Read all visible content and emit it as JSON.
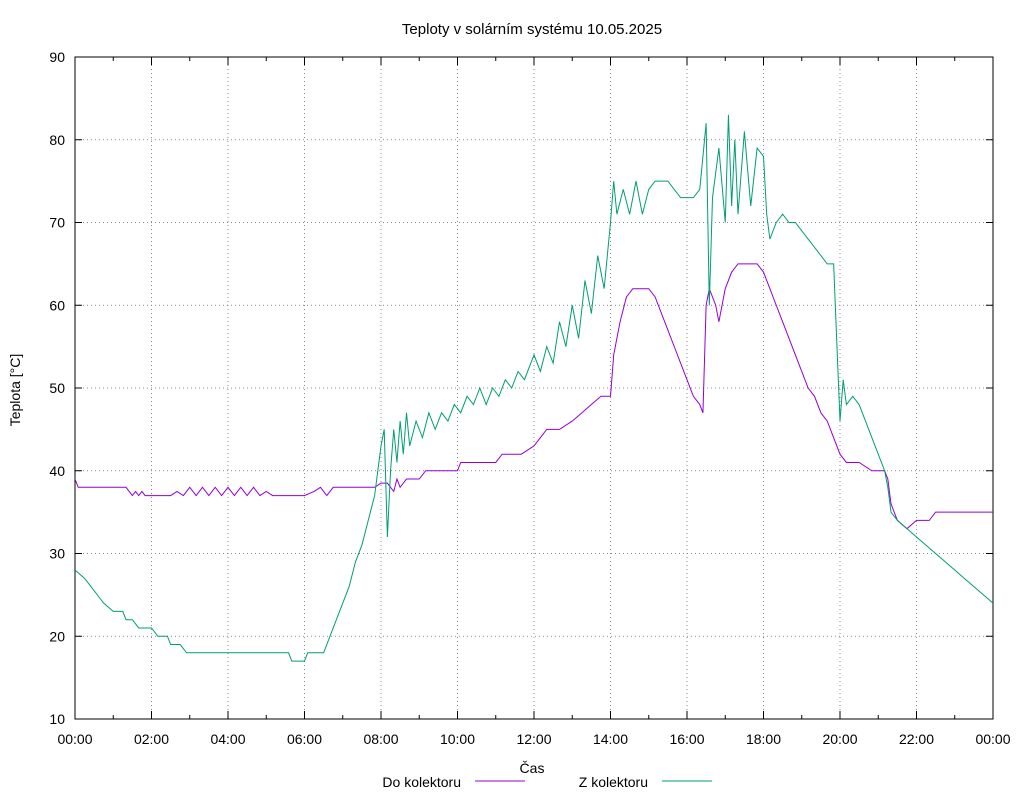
{
  "chart_data": {
    "type": "line",
    "title": "Teploty v solárním systému 10.05.2025",
    "xlabel": "Čas",
    "ylabel": "Teplota [°C]",
    "xlim": [
      "00:00",
      "24:00"
    ],
    "ylim": [
      10,
      90
    ],
    "grid": true,
    "legend_position": "bottom",
    "x_ticks": [
      "00:00",
      "02:00",
      "04:00",
      "06:00",
      "08:00",
      "10:00",
      "12:00",
      "14:00",
      "16:00",
      "18:00",
      "20:00",
      "22:00",
      "00:00"
    ],
    "y_ticks": [
      "10",
      "20",
      "30",
      "40",
      "50",
      "60",
      "70",
      "80",
      "90"
    ],
    "series": [
      {
        "name": "Do kolektoru",
        "color": "#9400d3",
        "points": [
          [
            "00:00",
            39
          ],
          [
            "00:05",
            38
          ],
          [
            "01:20",
            38
          ],
          [
            "01:25",
            37.5
          ],
          [
            "01:30",
            37
          ],
          [
            "01:35",
            37.5
          ],
          [
            "01:40",
            37
          ],
          [
            "01:45",
            37.5
          ],
          [
            "01:50",
            37
          ],
          [
            "02:00",
            37
          ],
          [
            "02:10",
            37
          ],
          [
            "02:30",
            37
          ],
          [
            "02:40",
            37.5
          ],
          [
            "02:50",
            37
          ],
          [
            "03:00",
            38
          ],
          [
            "03:10",
            37
          ],
          [
            "03:20",
            38
          ],
          [
            "03:30",
            37
          ],
          [
            "03:40",
            38
          ],
          [
            "03:50",
            37
          ],
          [
            "04:00",
            38
          ],
          [
            "04:10",
            37
          ],
          [
            "04:20",
            38
          ],
          [
            "04:30",
            37
          ],
          [
            "04:40",
            38
          ],
          [
            "04:50",
            37
          ],
          [
            "05:00",
            37.5
          ],
          [
            "05:10",
            37
          ],
          [
            "06:00",
            37
          ],
          [
            "06:15",
            37.5
          ],
          [
            "06:25",
            38
          ],
          [
            "06:35",
            37
          ],
          [
            "06:45",
            38
          ],
          [
            "07:00",
            38
          ],
          [
            "07:50",
            38
          ],
          [
            "08:00",
            38.5
          ],
          [
            "08:10",
            38.5
          ],
          [
            "08:15",
            38
          ],
          [
            "08:20",
            37.5
          ],
          [
            "08:25",
            39
          ],
          [
            "08:30",
            38
          ],
          [
            "08:40",
            39
          ],
          [
            "09:00",
            39
          ],
          [
            "09:10",
            40
          ],
          [
            "09:30",
            40
          ],
          [
            "10:00",
            40
          ],
          [
            "10:05",
            41
          ],
          [
            "10:30",
            41
          ],
          [
            "11:00",
            41
          ],
          [
            "11:10",
            42
          ],
          [
            "11:40",
            42
          ],
          [
            "12:00",
            43
          ],
          [
            "12:10",
            44
          ],
          [
            "12:20",
            45
          ],
          [
            "12:40",
            45
          ],
          [
            "13:00",
            46
          ],
          [
            "13:15",
            47
          ],
          [
            "13:30",
            48
          ],
          [
            "13:45",
            49
          ],
          [
            "14:00",
            49
          ],
          [
            "14:05",
            54
          ],
          [
            "14:15",
            58
          ],
          [
            "14:25",
            61
          ],
          [
            "14:35",
            62
          ],
          [
            "14:50",
            62
          ],
          [
            "15:00",
            62
          ],
          [
            "15:10",
            61
          ],
          [
            "15:20",
            59
          ],
          [
            "15:30",
            57
          ],
          [
            "15:40",
            55
          ],
          [
            "15:50",
            53
          ],
          [
            "16:00",
            51
          ],
          [
            "16:10",
            49
          ],
          [
            "16:20",
            48
          ],
          [
            "16:25",
            47
          ],
          [
            "16:30",
            60
          ],
          [
            "16:35",
            62
          ],
          [
            "16:45",
            60
          ],
          [
            "16:50",
            58
          ],
          [
            "17:00",
            62
          ],
          [
            "17:10",
            64
          ],
          [
            "17:20",
            65
          ],
          [
            "17:30",
            65
          ],
          [
            "17:40",
            65
          ],
          [
            "17:50",
            65
          ],
          [
            "18:00",
            64
          ],
          [
            "18:10",
            62
          ],
          [
            "18:20",
            60
          ],
          [
            "18:30",
            58
          ],
          [
            "18:40",
            56
          ],
          [
            "18:50",
            54
          ],
          [
            "19:00",
            52
          ],
          [
            "19:10",
            50
          ],
          [
            "19:20",
            49
          ],
          [
            "19:30",
            47
          ],
          [
            "19:40",
            46
          ],
          [
            "19:50",
            44
          ],
          [
            "20:00",
            42
          ],
          [
            "20:10",
            41
          ],
          [
            "20:30",
            41
          ],
          [
            "20:50",
            40
          ],
          [
            "21:10",
            40
          ],
          [
            "21:15",
            39
          ],
          [
            "21:20",
            36
          ],
          [
            "21:30",
            34
          ],
          [
            "21:45",
            33
          ],
          [
            "22:00",
            34
          ],
          [
            "22:20",
            34
          ],
          [
            "22:30",
            35
          ],
          [
            "24:00",
            35
          ]
        ]
      },
      {
        "name": "Z kolektoru",
        "color": "#009e73",
        "points": [
          [
            "00:00",
            28
          ],
          [
            "00:15",
            27
          ],
          [
            "00:25",
            26
          ],
          [
            "00:35",
            25
          ],
          [
            "00:45",
            24
          ],
          [
            "01:00",
            23
          ],
          [
            "01:15",
            23
          ],
          [
            "01:20",
            22
          ],
          [
            "01:30",
            22
          ],
          [
            "01:40",
            21
          ],
          [
            "02:00",
            21
          ],
          [
            "02:10",
            20
          ],
          [
            "02:25",
            20
          ],
          [
            "02:30",
            19
          ],
          [
            "02:45",
            19
          ],
          [
            "02:55",
            18
          ],
          [
            "03:30",
            18
          ],
          [
            "04:00",
            18
          ],
          [
            "05:00",
            18
          ],
          [
            "05:35",
            18
          ],
          [
            "05:40",
            17
          ],
          [
            "06:00",
            17
          ],
          [
            "06:05",
            18
          ],
          [
            "06:30",
            18
          ],
          [
            "06:40",
            20
          ],
          [
            "06:50",
            22
          ],
          [
            "07:00",
            24
          ],
          [
            "07:10",
            26
          ],
          [
            "07:20",
            29
          ],
          [
            "07:30",
            31
          ],
          [
            "07:40",
            34
          ],
          [
            "07:50",
            37
          ],
          [
            "07:55",
            40
          ],
          [
            "08:00",
            43
          ],
          [
            "08:05",
            45
          ],
          [
            "08:10",
            32
          ],
          [
            "08:15",
            40
          ],
          [
            "08:20",
            45
          ],
          [
            "08:25",
            41
          ],
          [
            "08:30",
            46
          ],
          [
            "08:35",
            42
          ],
          [
            "08:40",
            47
          ],
          [
            "08:45",
            43
          ],
          [
            "08:55",
            46
          ],
          [
            "09:05",
            44
          ],
          [
            "09:15",
            47
          ],
          [
            "09:25",
            45
          ],
          [
            "09:35",
            47
          ],
          [
            "09:45",
            46
          ],
          [
            "09:55",
            48
          ],
          [
            "10:05",
            47
          ],
          [
            "10:15",
            49
          ],
          [
            "10:25",
            48
          ],
          [
            "10:35",
            50
          ],
          [
            "10:45",
            48
          ],
          [
            "10:55",
            50
          ],
          [
            "11:05",
            49
          ],
          [
            "11:15",
            51
          ],
          [
            "11:25",
            50
          ],
          [
            "11:35",
            52
          ],
          [
            "11:45",
            51
          ],
          [
            "12:00",
            54
          ],
          [
            "12:10",
            52
          ],
          [
            "12:20",
            55
          ],
          [
            "12:30",
            53
          ],
          [
            "12:40",
            58
          ],
          [
            "12:50",
            55
          ],
          [
            "13:00",
            60
          ],
          [
            "13:10",
            56
          ],
          [
            "13:20",
            63
          ],
          [
            "13:30",
            59
          ],
          [
            "13:40",
            66
          ],
          [
            "13:50",
            62
          ],
          [
            "14:00",
            70
          ],
          [
            "14:05",
            75
          ],
          [
            "14:10",
            71
          ],
          [
            "14:20",
            74
          ],
          [
            "14:30",
            71
          ],
          [
            "14:40",
            75
          ],
          [
            "14:50",
            71
          ],
          [
            "15:00",
            74
          ],
          [
            "15:10",
            75
          ],
          [
            "15:30",
            75
          ],
          [
            "15:40",
            74
          ],
          [
            "15:50",
            73
          ],
          [
            "16:00",
            73
          ],
          [
            "16:10",
            73
          ],
          [
            "16:20",
            74
          ],
          [
            "16:30",
            82
          ],
          [
            "16:35",
            60
          ],
          [
            "16:40",
            73
          ],
          [
            "16:45",
            76
          ],
          [
            "16:50",
            79
          ],
          [
            "17:00",
            70
          ],
          [
            "17:05",
            83
          ],
          [
            "17:10",
            72
          ],
          [
            "17:15",
            80
          ],
          [
            "17:20",
            71
          ],
          [
            "17:30",
            81
          ],
          [
            "17:40",
            72
          ],
          [
            "17:50",
            79
          ],
          [
            "18:00",
            78
          ],
          [
            "18:05",
            71
          ],
          [
            "18:10",
            68
          ],
          [
            "18:20",
            70
          ],
          [
            "18:30",
            71
          ],
          [
            "18:40",
            70
          ],
          [
            "18:50",
            70
          ],
          [
            "19:00",
            69
          ],
          [
            "19:10",
            68
          ],
          [
            "19:20",
            67
          ],
          [
            "19:30",
            66
          ],
          [
            "19:40",
            65
          ],
          [
            "19:50",
            65
          ],
          [
            "20:00",
            46
          ],
          [
            "20:05",
            51
          ],
          [
            "20:10",
            48
          ],
          [
            "20:20",
            49
          ],
          [
            "20:30",
            48
          ],
          [
            "20:40",
            46
          ],
          [
            "20:50",
            44
          ],
          [
            "21:00",
            42
          ],
          [
            "21:10",
            40
          ],
          [
            "21:15",
            38
          ],
          [
            "21:20",
            35
          ],
          [
            "21:30",
            34
          ],
          [
            "21:45",
            33
          ],
          [
            "22:00",
            32
          ],
          [
            "22:15",
            31
          ],
          [
            "22:30",
            30
          ],
          [
            "22:45",
            29
          ],
          [
            "23:00",
            28
          ],
          [
            "23:15",
            27
          ],
          [
            "23:30",
            26
          ],
          [
            "23:45",
            25
          ],
          [
            "24:00",
            24
          ]
        ]
      }
    ]
  }
}
